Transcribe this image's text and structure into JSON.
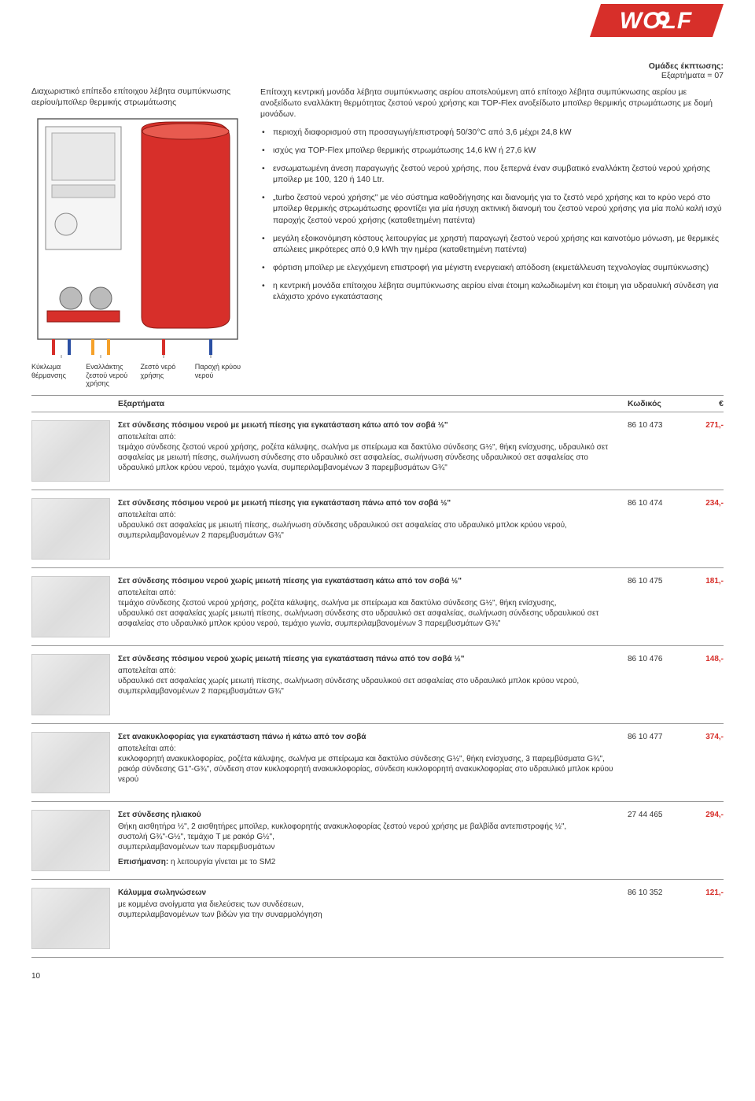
{
  "logo_text": "WOLF",
  "logo_fill": "#d72f2a",
  "logo_text_fill": "#ffffff",
  "discount": {
    "line1": "Ομάδες έκπτωσης:",
    "line2": "Εξαρτήματα = 07"
  },
  "left_title": "Διαχωριστικό επίπεδο επίτοιχου λέβητα συμπύκνωσης αερίου/μποϊλερ θερμικής στρωμάτωσης",
  "diagram": {
    "outer_stroke": "#555",
    "tank_fill": "#d72f2a",
    "tank_shadow": "#a31f1a",
    "pipe_warm": "#d72f2a",
    "pipe_cold": "#2a4fa3",
    "pipe_return": "#f5a12a",
    "pump_fill": "#888",
    "bg": "#ffffff"
  },
  "diagram_labels": {
    "c1": "Κύκλωμα θέρμανσης",
    "c2": "Εναλλάκτης ζεστού νερού χρήσης",
    "c3": "Ζεστό νερό χρήσης",
    "c4": "Παροχή κρύου νερού"
  },
  "intro": "Επίτοιχη κεντρική μονάδα λέβητα συμπύκνωσης αερίου αποτελούμενη από επίτοιχο λέβητα συμπύκνωσης αερίου με ανοξείδωτο εναλλάκτη θερμότητας ζεστού νερού χρήσης και TOP-Flex ανοξείδωτο μποϊλερ θερμικής στρωμάτωσης με δομή μονάδων.",
  "bullets": [
    "περιοχή διαφορισμού στη προσαγωγή/επιστροφή 50/30°C από 3,6 μέχρι 24,8 kW",
    "ισχύς για TOP-Flex μποϊλερ θερμικής στρωμάτωσης 14,6 kW ή 27,6 kW",
    "ενσωματωμένη άνεση παραγωγής ζεστού νερού χρήσης, που ξεπερνά έναν συμβατικό εναλλάκτη ζεστού νερού χρήσης μποϊλερ με 100, 120 ή 140 Ltr.",
    "„turbo ζεστού νερού χρήσης\" με νέο σύστημα καθοδήγησης και διανομής για το ζεστό νερό χρήσης και το κρύο νερό στο μποϊλερ θερμικής στρωμάτωσης φροντίζει για μία ήσυχη ακτινική διανομή του ζεστού νερού χρήσης για μία πολύ καλή ισχύ παροχής ζεστού νερού χρήσης (καταθετημένη πατέντα)",
    "μεγάλη εξοικονόμηση κόστους λειτουργίας με χρηστή παραγωγή ζεστού νερού χρήσης και καινοτόμο μόνωση, με θερμικές απώλειες μικρότερες από 0,9 kWh την ημέρα (καταθετημένη πατέντα)",
    "φόρτιση μποϊλερ με ελεγχόμενη επιστροφή για μέγιστη ενεργειακή απόδοση (εκμετάλλευση τεχνολογίας συμπύκνωσης)",
    "η κεντρική μονάδα επίτοιχου λέβητα συμπύκνωσης αερίου είναι έτοιμη καλωδιωμένη και έτοιμη για υδραυλική σύνδεση για ελάχιστο χρόνο εγκατάστασης"
  ],
  "table_header": {
    "desc": "Εξαρτήματα",
    "code": "Κωδικός",
    "price": "€"
  },
  "price_color": "#d72f2a",
  "rows": [
    {
      "title": "Σετ σύνδεσης πόσιμου νερού με μειωτή πίεσης για εγκατάσταση κάτω από τον σοβά ½\"",
      "body": "αποτελείται από:\nτεμάχιο σύνδεσης ζεστού νερού χρήσης, ροζέτα κάλυψης, σωλήνα με σπείρωμα και δακτύλιο σύνδεσης G½\", θήκη ενίσχυσης, υδραυλικό σετ ασφαλείας με μειωτή πίεσης, σωλήνωση σύνδεσης στο υδραυλικό σετ ασφαλείας, σωλήνωση σύνδεσης υδραυλικού σετ ασφαλείας στο υδραυλικό μπλοκ κρύου νερού, τεμάχιο γωνία, συμπεριλαμβανομένων 3 παρεμβυσμάτων G¾\"",
      "code": "86 10 473",
      "price": "271,-"
    },
    {
      "title": "Σετ σύνδεσης πόσιμου νερού με μειωτή πίεσης για εγκατάσταση πάνω από τον σοβά ½\"",
      "body": "αποτελείται από:\nυδραυλικό σετ ασφαλείας με μειωτή πίεσης, σωλήνωση σύνδεσης υδραυλικού σετ ασφαλείας στο υδραυλικό μπλοκ κρύου νερού, συμπεριλαμβανομένων 2 παρεμβυσμάτων G¾\"",
      "code": "86 10 474",
      "price": "234,-"
    },
    {
      "title": "Σετ σύνδεσης πόσιμου νερού χωρίς μειωτή πίεσης για εγκατάσταση κάτω από τον σοβά ½\"",
      "body": "αποτελείται από:\nτεμάχιο σύνδεσης ζεστού νερού χρήσης, ροζέτα κάλυψης, σωλήνα με σπείρωμα και δακτύλιο σύνδεσης G½\", θήκη ενίσχυσης,\nυδραυλικό σετ ασφαλείας χωρίς μειωτή πίεσης, σωλήνωση σύνδεσης στο υδραυλικό σετ ασφαλείας, σωλήνωση σύνδεσης υδραυλικού σετ ασφαλείας στο υδραυλικό μπλοκ κρύου νερού, τεμάχιο γωνία, συμπεριλαμβανομένων 3 παρεμβυσμάτων G¾\"",
      "code": "86 10 475",
      "price": "181,-"
    },
    {
      "title": "Σετ σύνδεσης πόσιμου νερού χωρίς μειωτή πίεσης για εγκατάσταση πάνω από τον σοβά ½\"",
      "body": "αποτελείται από:\nυδραυλικό σετ ασφαλείας χωρίς μειωτή πίεσης, σωλήνωση σύνδεσης υδραυλικού σετ ασφαλείας στο υδραυλικό μπλοκ κρύου νερού, συμπεριλαμβανομένων 2 παρεμβυσμάτων G¾\"",
      "code": "86 10 476",
      "price": "148,-"
    },
    {
      "title": "Σετ ανακυκλοφορίας για εγκατάσταση πάνω ή κάτω από τον σοβά",
      "body": "αποτελείται από:\nκυκλοφορητή ανακυκλοφορίας, ροζέτα κάλυψης, σωλήνα με σπείρωμα και δακτύλιο σύνδεσης G½\", θήκη ενίσχυσης, 3 παρεμβύσματα G¾\", ρακόρ σύνδεσης G1\"-G¾\", σύνδεση στον κυκλοφορητή ανακυκλοφορίας, σύνδεση κυκλοφορητή ανακυκλοφορίας στο υδραυλικό μπλοκ κρύου νερού",
      "code": "86 10 477",
      "price": "374,-"
    },
    {
      "title": "Σετ σύνδεσης ηλιακού",
      "body": "Θήκη αισθητήρα ½\", 2 αισθητήρες μποϊλερ, κυκλοφορητής ανακυκλοφορίας ζεστού νερού χρήσης με βαλβίδα αντεπιστροφής ½\",\nσυστολή G¾\"-G½\", τεμάχιο T με ρακόρ G½\",\nσυμπεριλαμβανομένων των παρεμβυσμάτων",
      "code": "27 44 465",
      "price": "294,-",
      "note_label": "Επισήμανση:",
      "note_text": " η λειτουργία γίνεται με το SM2"
    },
    {
      "title": "Κάλυμμα σωληνώσεων",
      "body": "με κομμένα ανοίγματα για διελεύσεις των συνδέσεων,\nσυμπεριλαμβανομένων των βιδών για την συναρμολόγηση",
      "code": "86 10 352",
      "price": "121,-"
    }
  ],
  "page_number": "10"
}
